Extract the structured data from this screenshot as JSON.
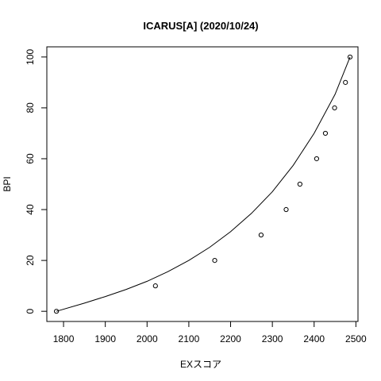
{
  "chart_data": {
    "type": "scatter",
    "title": "ICARUS[A] (2020/10/24)",
    "xlabel": "EXスコア",
    "ylabel": "BPI",
    "xlim": [
      1760,
      2505
    ],
    "ylim": [
      -4,
      104
    ],
    "xticks": [
      1800,
      1900,
      2000,
      2100,
      2200,
      2300,
      2400,
      2500
    ],
    "yticks": [
      0,
      20,
      40,
      60,
      80,
      100
    ],
    "points": {
      "x": [
        1783,
        2020,
        2162,
        2273,
        2333,
        2366,
        2406,
        2427,
        2449,
        2475,
        2486
      ],
      "y": [
        0,
        10,
        20,
        30,
        40,
        50,
        60,
        70,
        80,
        90,
        100
      ]
    },
    "curve": {
      "x": [
        1783,
        1850,
        1900,
        1950,
        2000,
        2050,
        2100,
        2150,
        2200,
        2250,
        2300,
        2350,
        2400,
        2450,
        2486
      ],
      "y": [
        0,
        3.2,
        5.8,
        8.6,
        11.8,
        15.6,
        20.0,
        25.2,
        31.3,
        38.5,
        47.0,
        57.4,
        70.0,
        85.3,
        100
      ]
    },
    "grid": false,
    "legend": "none"
  }
}
